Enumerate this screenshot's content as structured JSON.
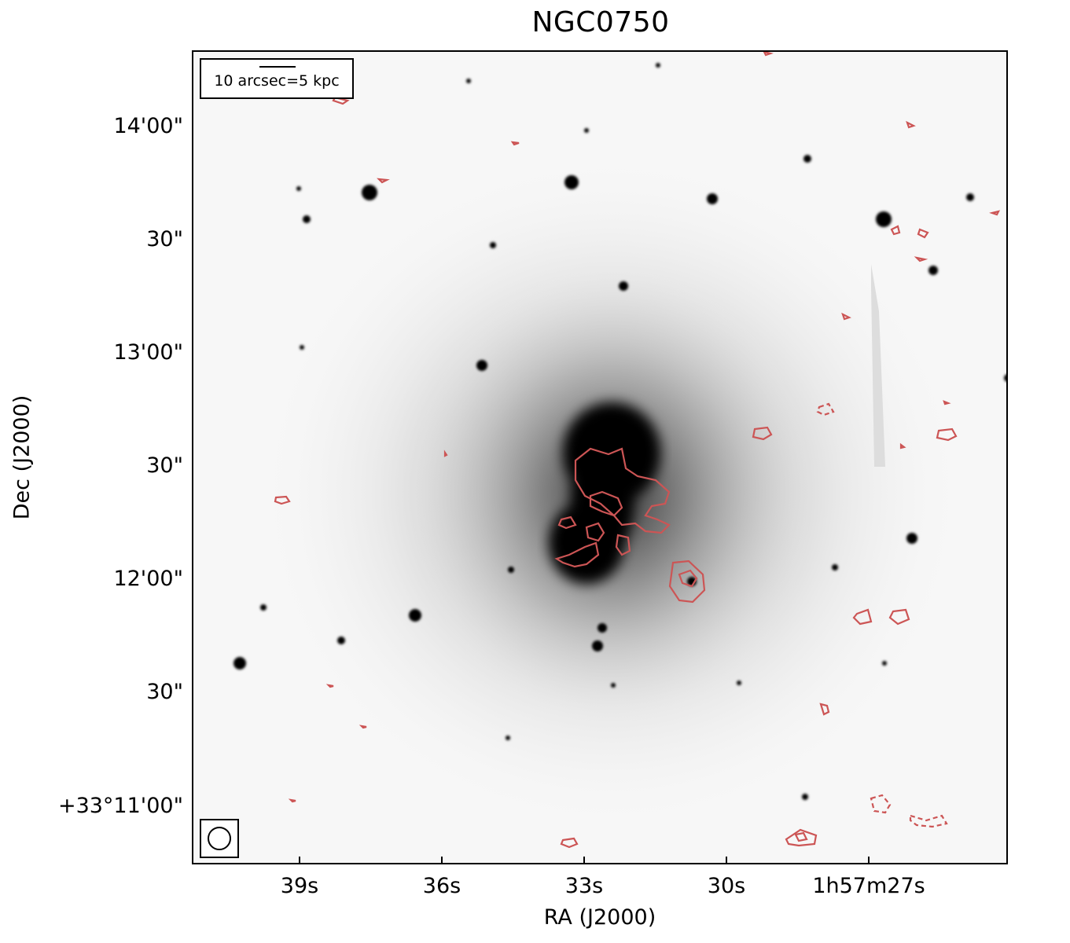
{
  "figure": {
    "title": "NGC0750",
    "xlabel": "RA (J2000)",
    "ylabel": "Dec (J2000)",
    "x_ticks": [
      "39s",
      "36s",
      "33s",
      "30s",
      "1h57m27s"
    ],
    "y_ticks": [
      "14'00\"",
      "30\"",
      "13'00\"",
      "30\"",
      "12'00\"",
      "30\"",
      "+33°11'00\""
    ],
    "scale_bar_label": "10 arcsec=5 kpc",
    "contour_color": "#cc5555"
  }
}
